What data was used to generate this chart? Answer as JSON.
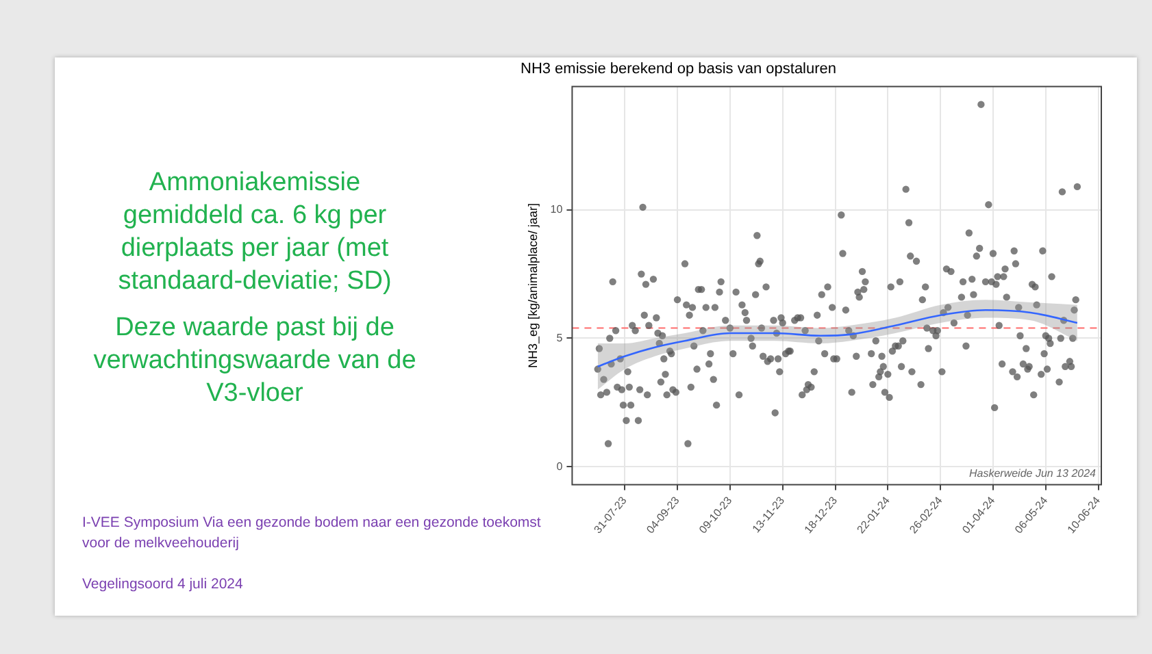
{
  "chart_data": {
    "type": "scatter",
    "title": "NH3 emissie berekend op basis van opstaluren",
    "ylabel": "NH3_eg [kg/animalplace/ jaar]",
    "annotations": [
      "Ammoniakemissie gemiddeld ca. 6 kg per dierplaats per jaar (met standaard-deviatie; SD)",
      "Deze waarde past bij de verwachtingswaarde van de V3-vloer",
      "I-VEE Symposium Via een gezonde bodem naar een gezonde toekomst voor de melkveehouderij",
      "Vegelingsoord 4 juli 2024",
      "Haskerweide Jun 13 2024"
    ],
    "xlim": [
      "2023-06-26",
      "2024-06-12"
    ],
    "ylim": [
      -0.7,
      14.8
    ],
    "yticks": [
      0,
      5,
      10
    ],
    "xticks": [
      {
        "value": "2023-07-31",
        "label": "31-07-23"
      },
      {
        "value": "2023-09-04",
        "label": "04-09-23"
      },
      {
        "value": "2023-10-09",
        "label": "09-10-23"
      },
      {
        "value": "2023-11-13",
        "label": "13-11-23"
      },
      {
        "value": "2023-12-18",
        "label": "18-12-23"
      },
      {
        "value": "2024-01-22",
        "label": "22-01-24"
      },
      {
        "value": "2024-02-26",
        "label": "26-02-24"
      },
      {
        "value": "2024-04-01",
        "label": "01-04-24"
      },
      {
        "value": "2024-05-06",
        "label": "06-05-24"
      },
      {
        "value": "2024-06-10",
        "label": "10-06-24"
      }
    ],
    "grid": true,
    "ref_lines": [
      {
        "axis": "y",
        "value": 5.4,
        "color": "#ff6b6b",
        "line_style": "dashed"
      }
    ],
    "series": [
      {
        "type": "scatter",
        "marker": "circle",
        "color": "#555555",
        "x": [
          "2023-07-13",
          "2023-07-14",
          "2023-07-15",
          "2023-07-17",
          "2023-07-19",
          "2023-07-20",
          "2023-07-21",
          "2023-07-22",
          "2023-07-23",
          "2023-07-25",
          "2023-07-26",
          "2023-07-28",
          "2023-07-29",
          "2023-07-30",
          "2023-08-01",
          "2023-08-02",
          "2023-08-03",
          "2023-08-04",
          "2023-08-05",
          "2023-08-07",
          "2023-08-09",
          "2023-08-10",
          "2023-08-11",
          "2023-08-12",
          "2023-08-13",
          "2023-08-14",
          "2023-08-15",
          "2023-08-16",
          "2023-08-19",
          "2023-08-21",
          "2023-08-22",
          "2023-08-23",
          "2023-08-24",
          "2023-08-25",
          "2023-08-26",
          "2023-08-27",
          "2023-08-28",
          "2023-08-30",
          "2023-08-31",
          "2023-09-01",
          "2023-09-03",
          "2023-09-04",
          "2023-09-09",
          "2023-09-10",
          "2023-09-11",
          "2023-09-12",
          "2023-09-13",
          "2023-09-14",
          "2023-09-15",
          "2023-09-17",
          "2023-09-18",
          "2023-09-20",
          "2023-09-21",
          "2023-09-23",
          "2023-09-25",
          "2023-09-26",
          "2023-09-28",
          "2023-09-29",
          "2023-09-30",
          "2023-10-02",
          "2023-10-03",
          "2023-10-06",
          "2023-10-09",
          "2023-10-11",
          "2023-10-13",
          "2023-10-15",
          "2023-10-17",
          "2023-10-19",
          "2023-10-20",
          "2023-10-23",
          "2023-10-24",
          "2023-10-26",
          "2023-10-27",
          "2023-10-28",
          "2023-10-29",
          "2023-10-30",
          "2023-10-31",
          "2023-11-02",
          "2023-11-03",
          "2023-11-05",
          "2023-11-07",
          "2023-11-08",
          "2023-11-09",
          "2023-11-10",
          "2023-11-11",
          "2023-11-12",
          "2023-11-13",
          "2023-11-15",
          "2023-11-17",
          "2023-11-18",
          "2023-11-21",
          "2023-11-23",
          "2023-11-25",
          "2023-11-26",
          "2023-11-28",
          "2023-11-29",
          "2023-11-30",
          "2023-12-02",
          "2023-12-04",
          "2023-12-06",
          "2023-12-07",
          "2023-12-09",
          "2023-12-11",
          "2023-12-13",
          "2023-12-16",
          "2023-12-17",
          "2023-12-19",
          "2023-12-22",
          "2023-12-23",
          "2023-12-25",
          "2023-12-27",
          "2023-12-29",
          "2023-12-30",
          "2024-01-01",
          "2024-01-02",
          "2024-01-03",
          "2024-01-05",
          "2024-01-06",
          "2024-01-07",
          "2024-01-11",
          "2024-01-12",
          "2024-01-14",
          "2024-01-16",
          "2024-01-17",
          "2024-01-18",
          "2024-01-19",
          "2024-01-20",
          "2024-01-22",
          "2024-01-23",
          "2024-01-24",
          "2024-01-25",
          "2024-01-27",
          "2024-01-29",
          "2024-01-30",
          "2024-01-31",
          "2024-02-01",
          "2024-02-03",
          "2024-02-05",
          "2024-02-06",
          "2024-02-07",
          "2024-02-10",
          "2024-02-13",
          "2024-02-14",
          "2024-02-16",
          "2024-02-17",
          "2024-02-18",
          "2024-02-21",
          "2024-02-23",
          "2024-02-24",
          "2024-02-27",
          "2024-02-28",
          "2024-03-01",
          "2024-03-02",
          "2024-03-04",
          "2024-03-06",
          "2024-03-11",
          "2024-03-12",
          "2024-03-14",
          "2024-03-15",
          "2024-03-16",
          "2024-03-18",
          "2024-03-19",
          "2024-03-21",
          "2024-03-23",
          "2024-03-24",
          "2024-03-27",
          "2024-03-29",
          "2024-03-31",
          "2024-04-01",
          "2024-04-02",
          "2024-04-03",
          "2024-04-04",
          "2024-04-05",
          "2024-04-07",
          "2024-04-08",
          "2024-04-09",
          "2024-04-10",
          "2024-04-14",
          "2024-04-15",
          "2024-04-16",
          "2024-04-17",
          "2024-04-18",
          "2024-04-19",
          "2024-04-21",
          "2024-04-23",
          "2024-04-24",
          "2024-04-25",
          "2024-04-27",
          "2024-04-28",
          "2024-04-29",
          "2024-04-30",
          "2024-05-03",
          "2024-05-04",
          "2024-05-05",
          "2024-05-06",
          "2024-05-07",
          "2024-05-08",
          "2024-05-09",
          "2024-05-10",
          "2024-05-15",
          "2024-05-16",
          "2024-05-17",
          "2024-05-18",
          "2024-05-19",
          "2024-05-22",
          "2024-05-23",
          "2024-05-24",
          "2024-05-25",
          "2024-05-26",
          "2024-05-27"
        ],
        "values": [
          3.8,
          4.6,
          2.8,
          3.4,
          2.9,
          0.9,
          5.0,
          4.0,
          7.2,
          5.3,
          3.1,
          4.2,
          3.0,
          2.4,
          1.8,
          3.7,
          3.1,
          2.4,
          5.5,
          5.3,
          1.8,
          3.0,
          7.5,
          10.1,
          5.9,
          7.1,
          2.8,
          5.5,
          7.3,
          5.8,
          5.2,
          4.8,
          3.3,
          5.1,
          4.2,
          3.6,
          2.8,
          4.5,
          4.4,
          3.0,
          2.9,
          6.5,
          7.9,
          6.3,
          0.9,
          5.9,
          3.1,
          6.2,
          4.7,
          3.8,
          6.9,
          6.9,
          5.3,
          6.2,
          4.0,
          4.4,
          3.4,
          6.2,
          2.4,
          6.8,
          7.2,
          5.7,
          5.4,
          4.4,
          6.8,
          2.8,
          6.3,
          6.0,
          5.7,
          5.0,
          4.7,
          6.7,
          9.0,
          7.9,
          8.0,
          5.4,
          4.3,
          7.0,
          4.1,
          4.2,
          5.7,
          2.1,
          5.2,
          4.2,
          3.7,
          5.8,
          5.6,
          4.4,
          4.5,
          4.5,
          5.7,
          5.8,
          5.8,
          2.8,
          5.3,
          3.0,
          3.2,
          3.1,
          3.7,
          5.9,
          4.9,
          6.7,
          4.4,
          7.0,
          6.2,
          4.2,
          4.2,
          9.8,
          8.3,
          6.1,
          5.3,
          2.9,
          5.1,
          4.3,
          6.8,
          6.6,
          7.6,
          6.9,
          7.2,
          4.4,
          3.2,
          4.9,
          3.5,
          3.7,
          4.3,
          3.9,
          2.9,
          3.6,
          2.7,
          7.0,
          4.5,
          4.7,
          4.7,
          7.2,
          3.9,
          4.9,
          10.8,
          9.5,
          8.2,
          3.7,
          8.0,
          3.2,
          6.5,
          7.0,
          5.4,
          4.6,
          5.3,
          5.1,
          5.3,
          3.7,
          6.0,
          7.7,
          6.2,
          7.6,
          5.6,
          6.6,
          7.2,
          4.7,
          5.9,
          9.1,
          7.3,
          6.7,
          8.2,
          8.5,
          14.1,
          7.2,
          10.2,
          7.2,
          8.3,
          2.3,
          7.1,
          7.4,
          5.5,
          4.0,
          7.4,
          7.7,
          6.6,
          3.7,
          8.4,
          7.9,
          3.5,
          6.2,
          5.1,
          4.0,
          4.6,
          3.8,
          3.9,
          7.1,
          2.8,
          7.0,
          6.3,
          3.6,
          8.4,
          4.4,
          5.1,
          3.8,
          5.0,
          4.8,
          7.4,
          3.3,
          5.0,
          10.7,
          5.7,
          3.9,
          4.1,
          3.9,
          5.0,
          6.1,
          6.5,
          10.9
        ]
      },
      {
        "type": "line",
        "marker": "none",
        "color": "#3366ff",
        "x": [
          "2023-07-13",
          "2023-07-31",
          "2023-08-20",
          "2023-09-09",
          "2023-10-09",
          "2023-11-08",
          "2023-12-08",
          "2023-12-28",
          "2024-01-27",
          "2024-02-26",
          "2024-03-27",
          "2024-04-26",
          "2024-05-27"
        ],
        "values": [
          3.9,
          4.3,
          4.65,
          4.9,
          5.2,
          5.2,
          5.1,
          5.15,
          5.5,
          5.9,
          6.1,
          6.0,
          5.6
        ],
        "lower": [
          3.0,
          3.8,
          4.3,
          4.6,
          4.9,
          4.9,
          4.8,
          4.9,
          5.2,
          5.6,
          5.8,
          5.7,
          4.9
        ],
        "upper": [
          4.8,
          4.8,
          5.0,
          5.2,
          5.5,
          5.5,
          5.4,
          5.5,
          5.8,
          6.3,
          6.5,
          6.4,
          6.3
        ]
      }
    ]
  }
}
